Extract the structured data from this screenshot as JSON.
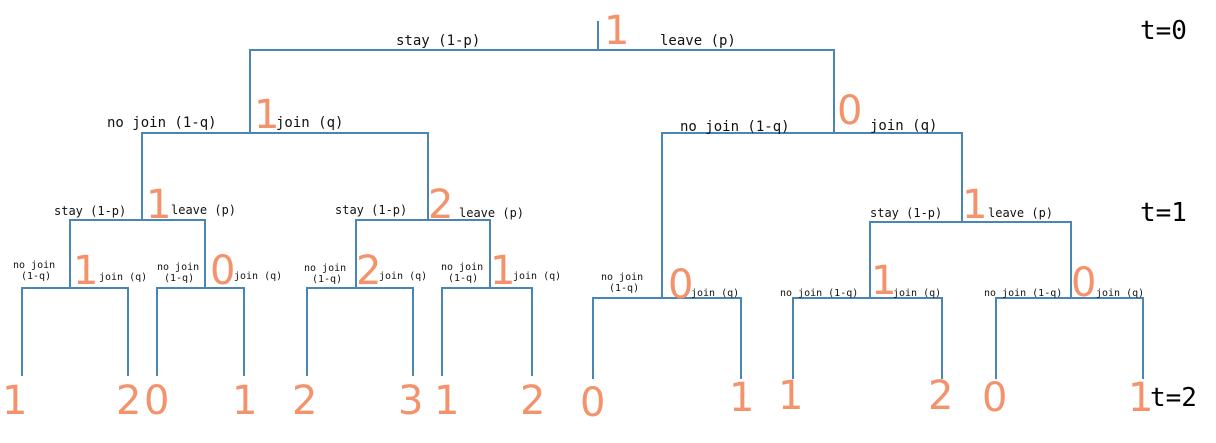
{
  "diagram": {
    "time_labels": [
      "t=0",
      "t=1",
      "t=2"
    ],
    "root": {
      "state": "1",
      "left_label": "stay (1-p)",
      "right_label": "leave (p)"
    },
    "level1": [
      {
        "state": "1",
        "left_label": "no join (1-q)",
        "right_label": "join (q)"
      },
      {
        "state": "0",
        "left_label": "no join (1-q)",
        "right_label": "join (q)"
      }
    ],
    "level2": [
      {
        "state": "1",
        "left_label": "stay (1-p)",
        "right_label": "leave (p)"
      },
      {
        "state": "2",
        "left_label": "stay (1-p)",
        "right_label": "leave (p)"
      },
      {
        "state": "0",
        "left_label_line1": "no join",
        "left_label_line2": "(1-q)",
        "right_label": "join (q)"
      },
      {
        "state": "1",
        "left_label": "stay (1-p)",
        "right_label": "leave (p)"
      }
    ],
    "level3": [
      {
        "state": "1",
        "left_label_line1": "no join",
        "left_label_line2": "(1-q)",
        "right_label": "join (q)"
      },
      {
        "state": "0",
        "left_label_line1": "no join",
        "left_label_line2": "(1-q)",
        "right_label": "join (q)"
      },
      {
        "state": "2",
        "left_label_line1": "no join",
        "left_label_line2": "(1-q)",
        "right_label": "join (q)"
      },
      {
        "state": "1",
        "left_label_line1": "no join",
        "left_label_line2": "(1-q)",
        "right_label": "join (q)"
      },
      {
        "state": "1",
        "left_label": "no join (1-q)",
        "right_label": "join (q)"
      },
      {
        "state": "0",
        "left_label": "no join (1-q)",
        "right_label": "join (q)"
      }
    ],
    "leaves": [
      "1",
      "2",
      "0",
      "1",
      "2",
      "3",
      "1",
      "2",
      "0",
      "1",
      "1",
      "2",
      "0",
      "1"
    ]
  }
}
